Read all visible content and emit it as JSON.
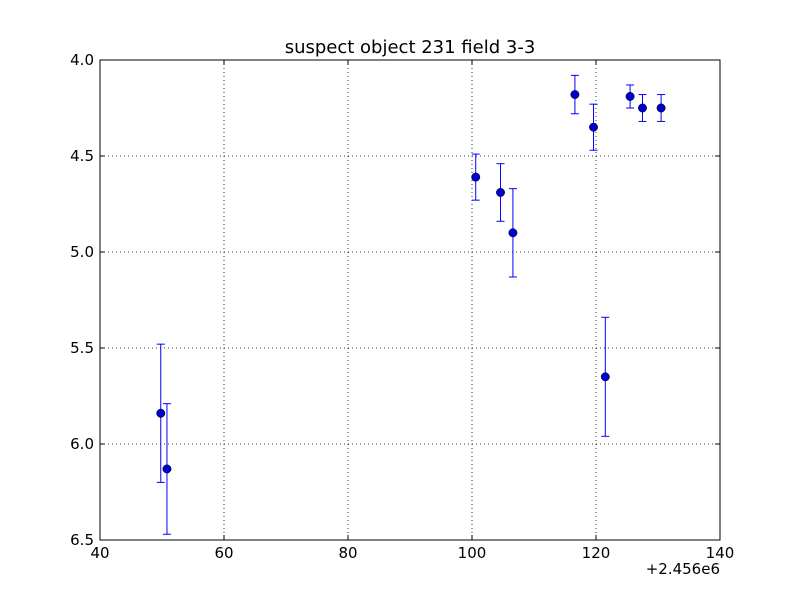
{
  "chart_data": {
    "type": "scatter",
    "title": "suspect object 231 field 3-3",
    "xlabel": "",
    "ylabel": "",
    "x_offset_label": "+2.456e6",
    "xlim": [
      40,
      140
    ],
    "ylim": [
      4.0,
      6.5
    ],
    "y_inverted": true,
    "grid": true,
    "grid_style": "dotted",
    "xticks": [
      "40",
      "60",
      "80",
      "100",
      "120",
      "140"
    ],
    "yticks": [
      "4.0",
      "4.5",
      "5.0",
      "5.5",
      "6.0",
      "6.5"
    ],
    "series": [
      {
        "marker": "circle",
        "error_bars": "y",
        "points": [
          {
            "x": 2456049.8,
            "y": 5.84,
            "yerr": 0.36
          },
          {
            "x": 2456050.8,
            "y": 6.13,
            "yerr": 0.34
          },
          {
            "x": 2456100.6,
            "y": 4.61,
            "yerr": 0.12
          },
          {
            "x": 2456104.6,
            "y": 4.69,
            "yerr": 0.15
          },
          {
            "x": 2456106.6,
            "y": 4.9,
            "yerr": 0.23
          },
          {
            "x": 2456116.6,
            "y": 4.18,
            "yerr": 0.1
          },
          {
            "x": 2456119.6,
            "y": 4.35,
            "yerr": 0.12
          },
          {
            "x": 2456121.5,
            "y": 5.65,
            "yerr": 0.31
          },
          {
            "x": 2456125.5,
            "y": 4.19,
            "yerr": 0.06
          },
          {
            "x": 2456127.5,
            "y": 4.25,
            "yerr": 0.07
          },
          {
            "x": 2456130.5,
            "y": 4.25,
            "yerr": 0.07
          }
        ]
      }
    ]
  },
  "colors": {
    "series": "#0000ff",
    "marker": "#0000cc",
    "axes": "#000000",
    "grid": "#000000"
  }
}
